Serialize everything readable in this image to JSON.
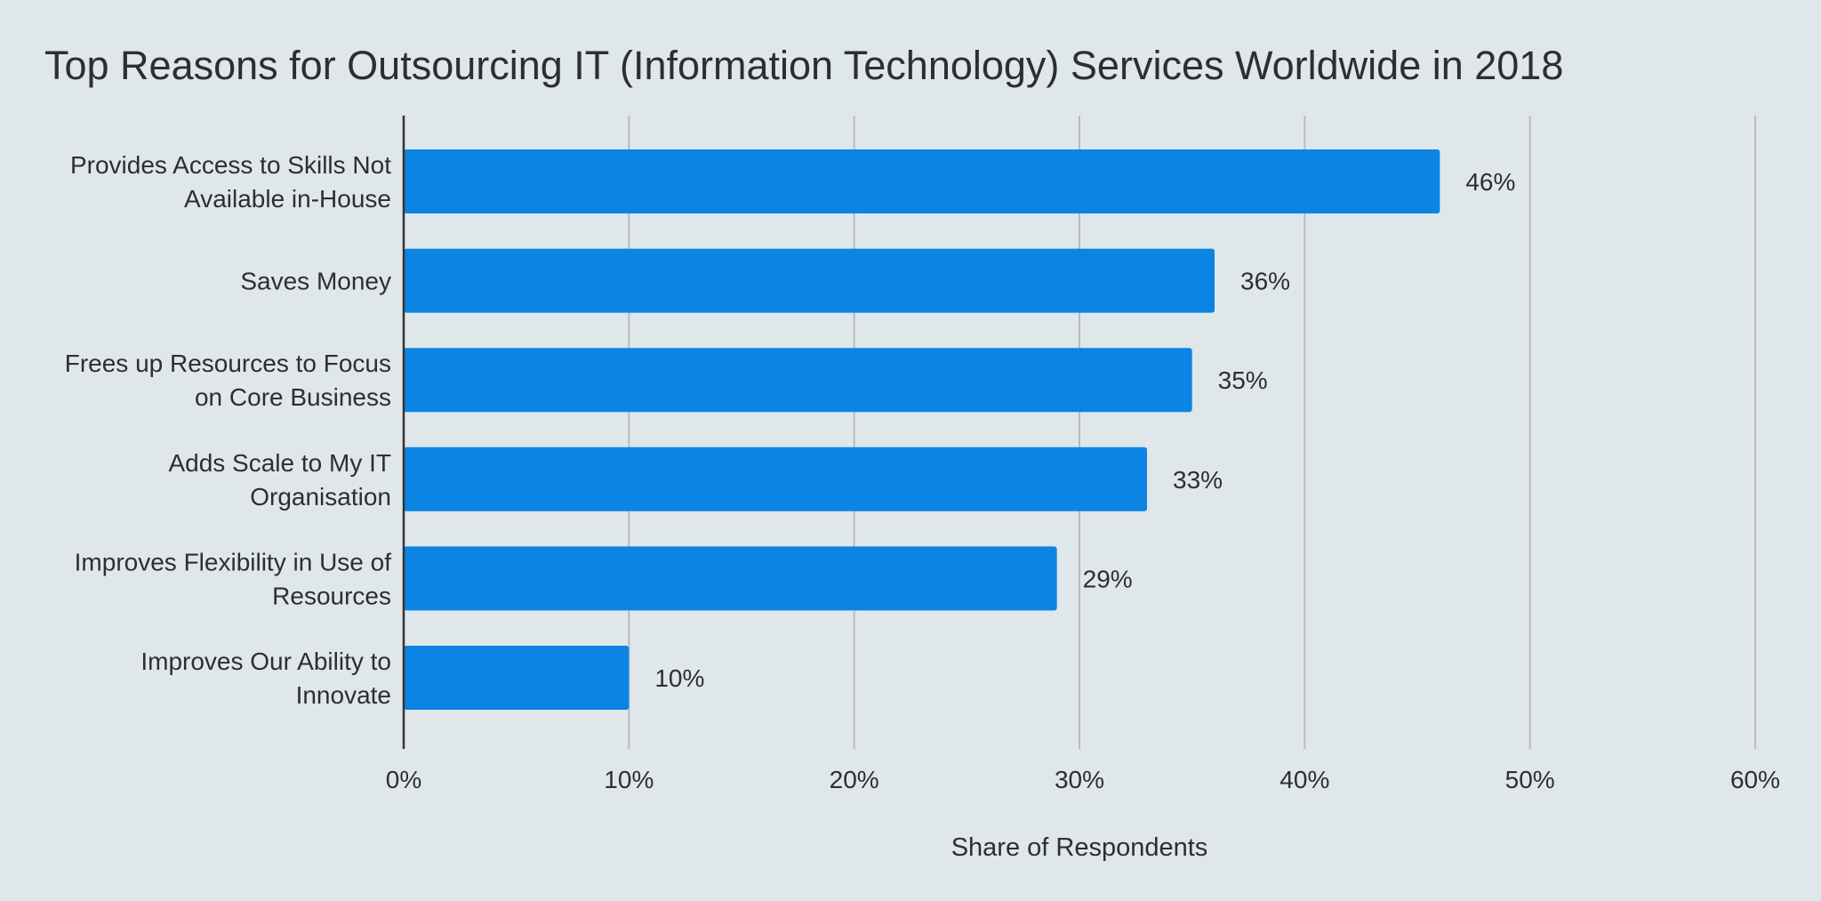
{
  "chart_data": {
    "type": "bar",
    "orientation": "horizontal",
    "title": "Top Reasons for Outsourcing IT (Information Technology) Services Worldwide in 2018",
    "xlabel": "Share of Respondents",
    "ylabel": "",
    "categories": [
      [
        "Provides Access to Skills Not",
        "Available in-House"
      ],
      [
        "Saves Money"
      ],
      [
        "Frees up Resources to Focus",
        "on Core Business"
      ],
      [
        "Adds Scale to My IT",
        "Organisation"
      ],
      [
        "Improves Flexibility in Use of",
        "Resources"
      ],
      [
        "Improves Our Ability to",
        "Innovate"
      ]
    ],
    "values": [
      46,
      36,
      35,
      33,
      29,
      10
    ],
    "data_labels": [
      "46%",
      "36%",
      "35%",
      "33%",
      "29%",
      "10%"
    ],
    "xlim": [
      0,
      60
    ],
    "x_ticks": [
      0,
      10,
      20,
      30,
      40,
      50,
      60
    ],
    "x_tick_labels": [
      "0%",
      "10%",
      "20%",
      "30%",
      "40%",
      "50%",
      "60%"
    ],
    "grid": "vertical",
    "legend": "none",
    "colors": {
      "bar": "#0b84e3",
      "background": "#dfe7eb",
      "grid": "#b6bcc0",
      "axis": "#333333",
      "text": "#2b2f33"
    }
  }
}
